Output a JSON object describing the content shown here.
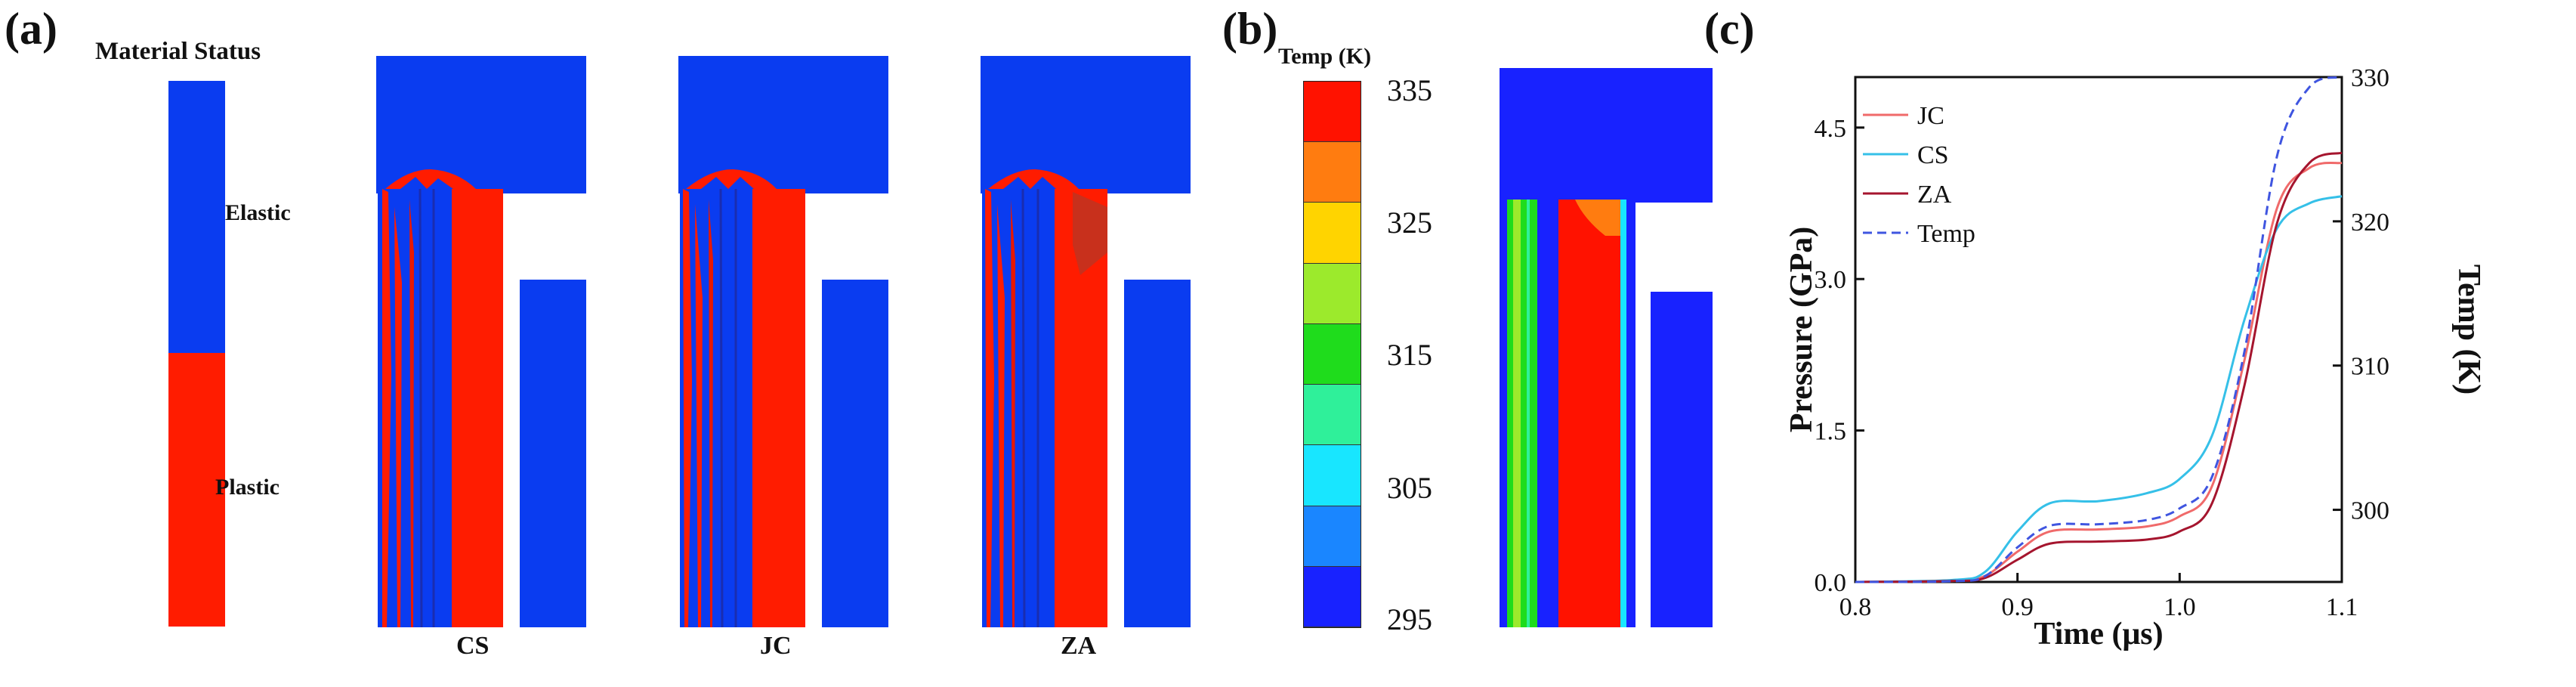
{
  "panel_a": {
    "label": "(a)",
    "legend_title": "Material Status",
    "legend": [
      {
        "label": "Elastic",
        "color": "#0a3cf0"
      },
      {
        "label": "Plastic",
        "color": "#ff1c00"
      }
    ],
    "models": [
      "CS",
      "JC",
      "ZA"
    ]
  },
  "panel_b": {
    "label": "(b)",
    "colorbar_title": "Temp (K)",
    "tick_labels": [
      "335",
      "325",
      "315",
      "305",
      "295"
    ],
    "colorbar_colors": [
      "#ff1200",
      "#ff7c10",
      "#ffd400",
      "#9cea2c",
      "#1fdc1c",
      "#2ff09a",
      "#18e6ff",
      "#1a86ff",
      "#1822ff"
    ]
  },
  "panel_c": {
    "label": "(c)",
    "chart_data": {
      "type": "line",
      "xlabel": "Time (μs)",
      "ylabel": "Pressure (GPa)",
      "y2label": "Temp (K)",
      "xlim": [
        0.8,
        1.1
      ],
      "ylim": [
        0.0,
        5.0
      ],
      "y2lim": [
        295,
        330
      ],
      "x_ticks": [
        "0.8",
        "0.9",
        "1.0",
        "1.1"
      ],
      "y_ticks": [
        "0.0",
        "1.5",
        "3.0",
        "4.5"
      ],
      "y2_ticks": [
        "300",
        "310",
        "320",
        "330"
      ],
      "legend_position": "top-left",
      "series": [
        {
          "name": "JC",
          "axis": "left",
          "color": "#f06a6a",
          "dash": false,
          "points": [
            [
              0.8,
              0.0
            ],
            [
              0.86,
              0.01
            ],
            [
              0.88,
              0.06
            ],
            [
              0.9,
              0.3
            ],
            [
              0.92,
              0.5
            ],
            [
              0.95,
              0.52
            ],
            [
              0.98,
              0.55
            ],
            [
              1.0,
              0.65
            ],
            [
              1.02,
              0.95
            ],
            [
              1.04,
              2.2
            ],
            [
              1.06,
              3.7
            ],
            [
              1.08,
              4.1
            ],
            [
              1.1,
              4.15
            ]
          ]
        },
        {
          "name": "CS",
          "axis": "left",
          "color": "#35c0e8",
          "dash": false,
          "points": [
            [
              0.8,
              0.0
            ],
            [
              0.86,
              0.02
            ],
            [
              0.88,
              0.1
            ],
            [
              0.9,
              0.5
            ],
            [
              0.92,
              0.78
            ],
            [
              0.95,
              0.8
            ],
            [
              0.98,
              0.88
            ],
            [
              1.0,
              1.02
            ],
            [
              1.02,
              1.45
            ],
            [
              1.04,
              2.6
            ],
            [
              1.06,
              3.5
            ],
            [
              1.08,
              3.75
            ],
            [
              1.1,
              3.82
            ]
          ]
        },
        {
          "name": "ZA",
          "axis": "left",
          "color": "#a5152e",
          "dash": false,
          "points": [
            [
              0.8,
              0.0
            ],
            [
              0.86,
              0.01
            ],
            [
              0.88,
              0.04
            ],
            [
              0.9,
              0.22
            ],
            [
              0.92,
              0.38
            ],
            [
              0.95,
              0.4
            ],
            [
              0.98,
              0.42
            ],
            [
              1.0,
              0.5
            ],
            [
              1.02,
              0.78
            ],
            [
              1.04,
              1.95
            ],
            [
              1.06,
              3.55
            ],
            [
              1.08,
              4.15
            ],
            [
              1.1,
              4.25
            ]
          ]
        },
        {
          "name": "Temp",
          "axis": "right",
          "color": "#3f55e0",
          "dash": true,
          "points": [
            [
              0.8,
              295.0
            ],
            [
              0.86,
              295.05
            ],
            [
              0.88,
              295.4
            ],
            [
              0.9,
              297.4
            ],
            [
              0.92,
              298.9
            ],
            [
              0.95,
              299.0
            ],
            [
              0.98,
              299.3
            ],
            [
              1.0,
              300.1
            ],
            [
              1.02,
              302.3
            ],
            [
              1.04,
              311.0
            ],
            [
              1.06,
              324.5
            ],
            [
              1.08,
              329.3
            ],
            [
              1.1,
              330.0
            ]
          ]
        }
      ]
    }
  }
}
